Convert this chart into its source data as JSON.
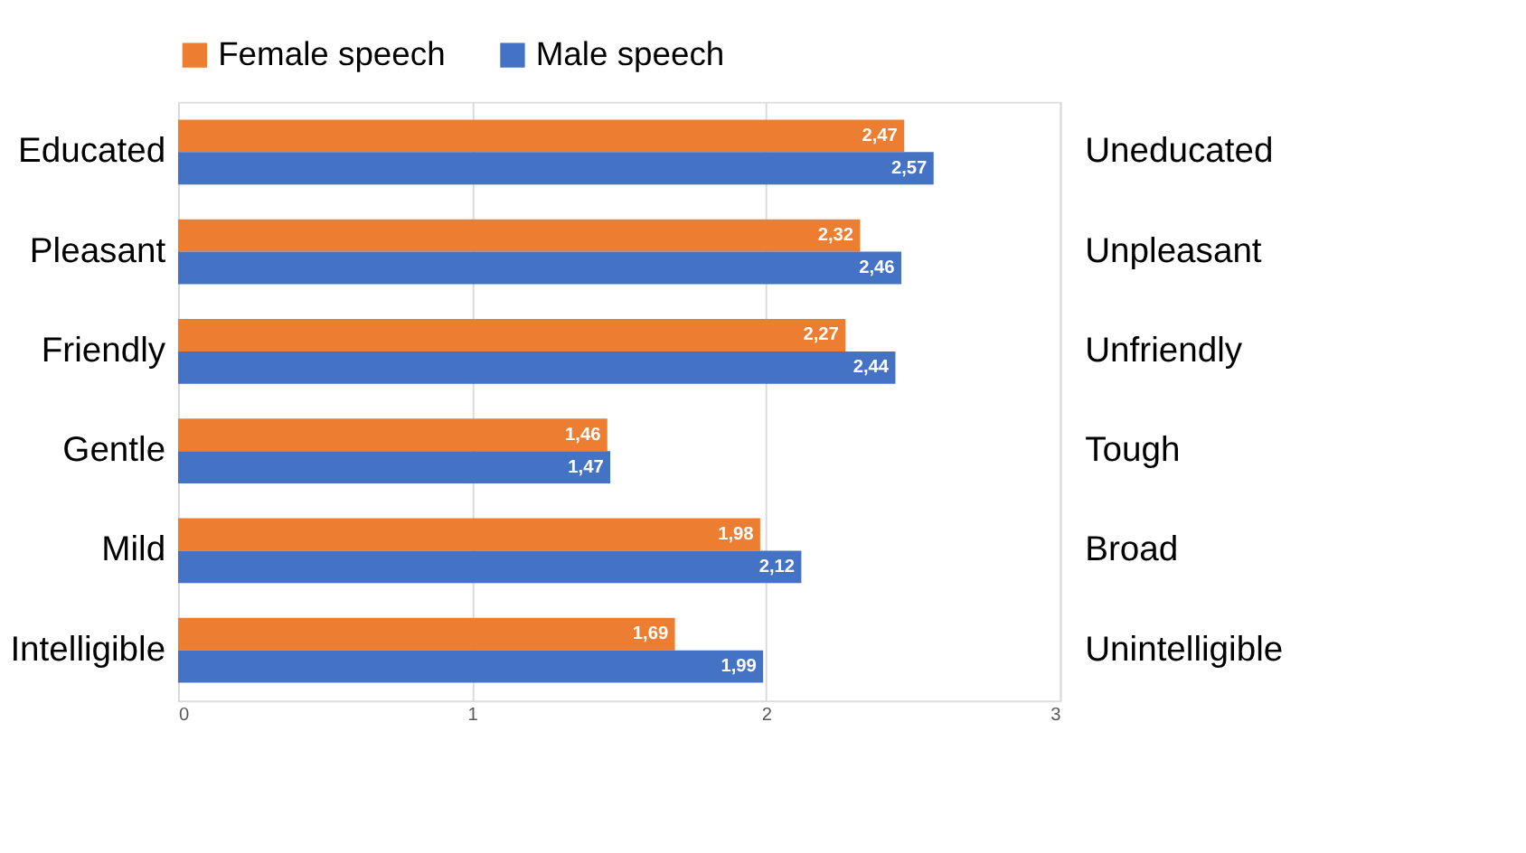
{
  "chart_data": {
    "type": "bar",
    "orientation": "horizontal",
    "categories": [
      "Educated",
      "Pleasant",
      "Friendly",
      "Gentle",
      "Mild",
      "Intelligible"
    ],
    "y2_categories": [
      "Uneducated",
      "Unpleasant",
      "Unfriendly",
      "Tough",
      "Broad",
      "Unintelligible"
    ],
    "series": [
      {
        "name": "Female speech",
        "color": "#ed7d31",
        "values": [
          2.47,
          2.32,
          2.27,
          1.46,
          1.98,
          1.69
        ],
        "value_labels": [
          "2,47",
          "2,32",
          "2,27",
          "1,46",
          "1,98",
          "1,69"
        ]
      },
      {
        "name": "Male speech",
        "color": "#4472c4",
        "values": [
          2.57,
          2.46,
          2.44,
          1.47,
          2.12,
          1.99
        ],
        "value_labels": [
          "2,57",
          "2,46",
          "2,44",
          "1,47",
          "2,12",
          "1,99"
        ]
      }
    ],
    "xlim": [
      0,
      3
    ],
    "xticks": [
      0,
      1,
      2,
      3
    ],
    "grid": "x",
    "legend": "top"
  }
}
